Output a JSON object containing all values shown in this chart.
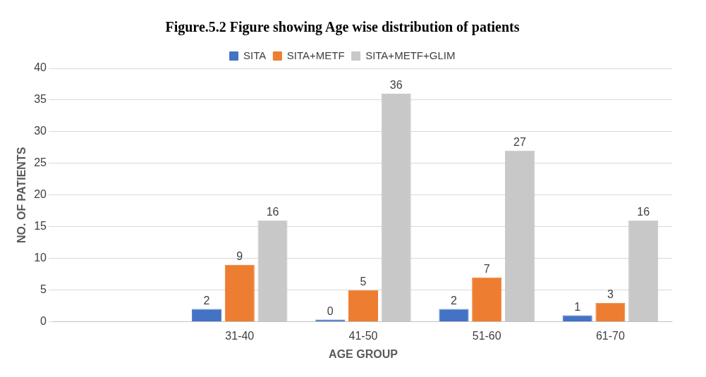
{
  "chart_data": {
    "type": "bar",
    "title": "Figure.5.2 Figure showing Age wise distribution of patients",
    "xlabel": "AGE GROUP",
    "ylabel": "NO. OF PATIENTS",
    "categories": [
      null,
      "31-40",
      "41-50",
      "51-60",
      "61-70"
    ],
    "series": [
      {
        "name": "SITA",
        "color": "#4472c4",
        "values": [
          null,
          2,
          0,
          2,
          1
        ]
      },
      {
        "name": "SITA+METF",
        "color": "#ed7d31",
        "values": [
          null,
          9,
          5,
          7,
          3
        ]
      },
      {
        "name": "SITA+METF+GLIM",
        "color": "#c8c8c8",
        "values": [
          null,
          16,
          36,
          27,
          16
        ]
      }
    ],
    "ylim": [
      0,
      40
    ],
    "yticks": [
      0,
      5,
      10,
      15,
      20,
      25,
      30,
      35,
      40
    ],
    "grid": "y",
    "legend": "top",
    "data_labels": true
  }
}
